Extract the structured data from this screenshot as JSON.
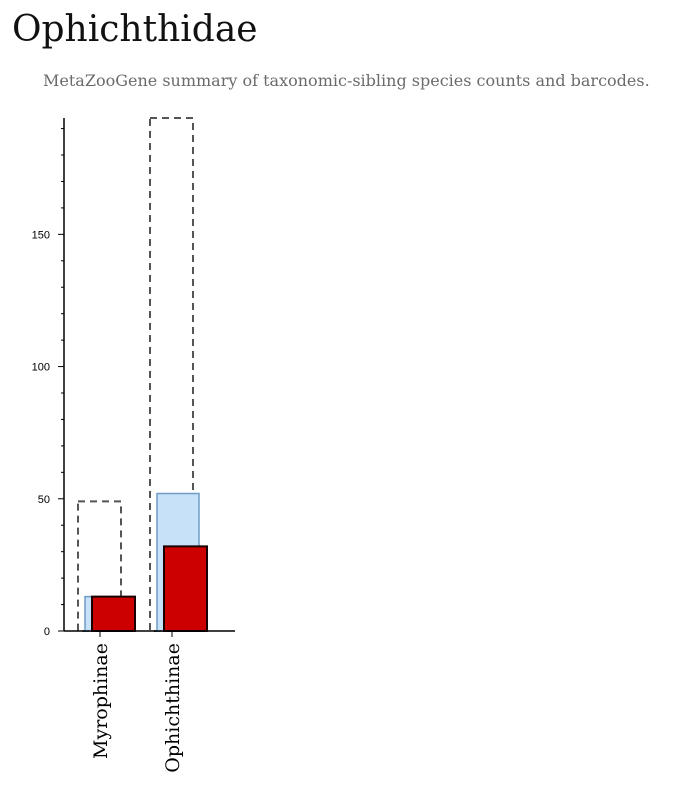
{
  "page": {
    "title": "Ophichthidae",
    "subtitle": "MetaZooGene summary of taxonomic-sibling species counts and barcodes."
  },
  "colors": {
    "total_outline": "#555555",
    "species_fill": "#c6e1f8",
    "species_stroke": "#6f9cc8",
    "barcoded_fill": "#cc0000",
    "barcoded_stroke": "#1a0000",
    "axis": "#000000"
  },
  "chart_data": {
    "type": "bar",
    "categories": [
      "Myrophinae",
      "Ophichthinae"
    ],
    "series": [
      {
        "values": [
          49,
          194
        ]
      },
      {
        "values": [
          13,
          52
        ]
      },
      {
        "values": [
          13,
          32
        ]
      }
    ],
    "y_ticks": [
      0,
      50,
      100,
      150
    ],
    "ylim": [
      0,
      194
    ],
    "grid": false
  }
}
